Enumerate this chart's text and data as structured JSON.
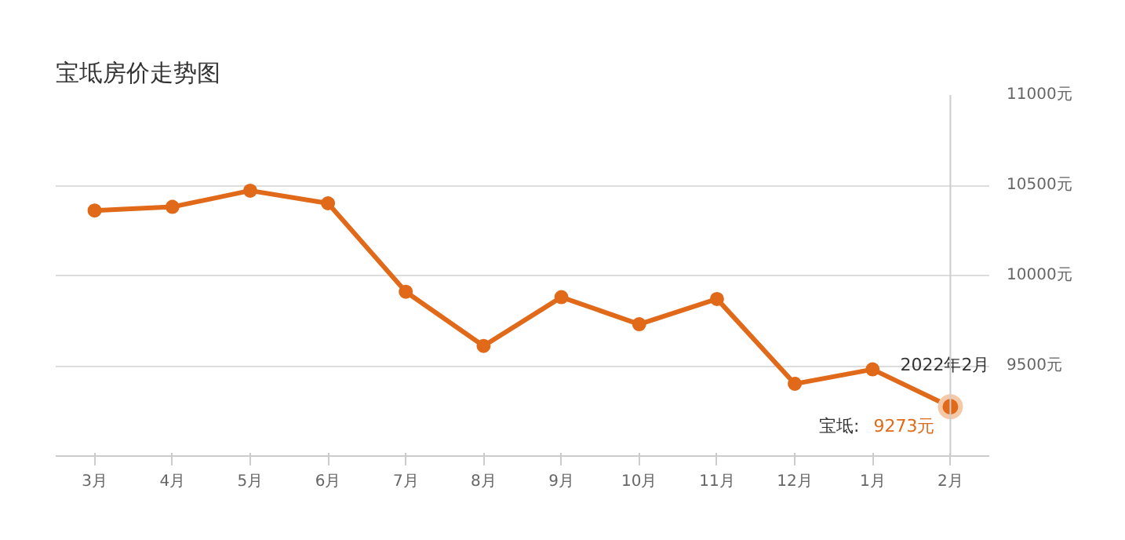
{
  "chart_data": {
    "type": "line",
    "title": "宝坻房价走势图",
    "categories": [
      "3月",
      "4月",
      "5月",
      "6月",
      "7月",
      "8月",
      "9月",
      "10月",
      "11月",
      "12月",
      "1月",
      "2月"
    ],
    "series": [
      {
        "name": "宝坻:",
        "color": "#e06a1a",
        "values": [
          10360,
          10380,
          10470,
          10400,
          9910,
          9610,
          9880,
          9730,
          9870,
          9400,
          9480,
          9273
        ],
        "value_labels": [
          null,
          null,
          null,
          null,
          null,
          null,
          null,
          null,
          null,
          null,
          null,
          "9273元"
        ]
      }
    ],
    "ylim": [
      9000,
      11000
    ],
    "yticks": [
      {
        "value": 9000,
        "label": null
      },
      {
        "value": 9500,
        "label": "9500元"
      },
      {
        "value": 10000,
        "label": "10000元"
      },
      {
        "value": 10500,
        "label": "10500元"
      },
      {
        "value": 11000,
        "label": "11000元"
      }
    ],
    "grid": "y",
    "marker": "circle",
    "line_style": "solid",
    "ref_lines": [
      {
        "axis": "x",
        "value": "2月",
        "color": "#cccccc"
      }
    ],
    "annotations": [
      {
        "text": "2022年2月",
        "x": "2月",
        "y": 9273
      }
    ]
  }
}
